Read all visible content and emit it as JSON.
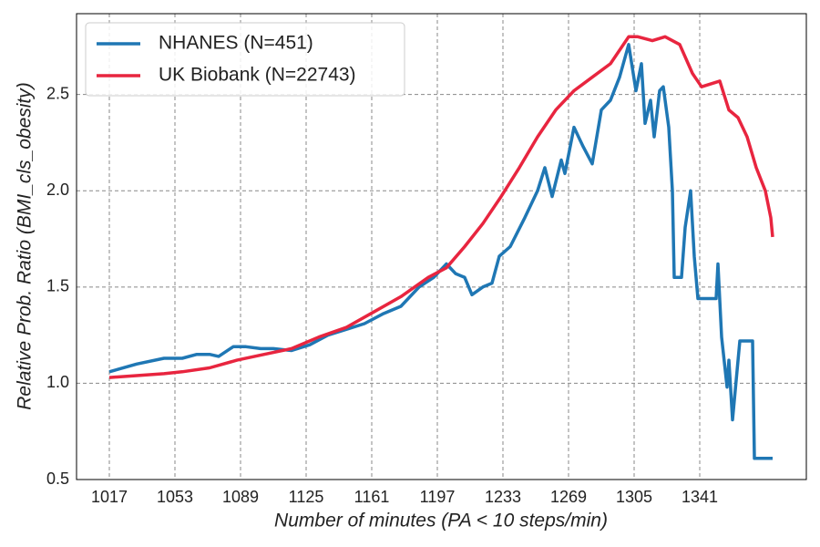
{
  "chart_data": {
    "type": "line",
    "x_label": "Number of minutes (PA < 10 steps/min)",
    "y_label": "Relative Prob. Ratio (BMI_cls_obesity)",
    "xlim": [
      999,
      1399.5
    ],
    "ylim": [
      0.5,
      2.92
    ],
    "xticks": [
      1017,
      1053,
      1089,
      1125,
      1161,
      1197,
      1233,
      1269,
      1305,
      1341
    ],
    "yticks": [
      0.5,
      1.0,
      1.5,
      2.0,
      2.5
    ],
    "ytick_labels": [
      "0.5",
      "1.0",
      "1.5",
      "2.0",
      "2.5"
    ],
    "grid": true,
    "legend": "upper left",
    "series": [
      {
        "name": "NHANES (N=451)",
        "color": "#1f77b4",
        "x": [
          1017,
          1032,
          1047,
          1057,
          1065,
          1072,
          1077,
          1085,
          1092,
          1100,
          1107,
          1117,
          1127,
          1137,
          1147,
          1157,
          1167,
          1177,
          1187,
          1195,
          1202,
          1207,
          1212,
          1216,
          1222,
          1227,
          1231,
          1237,
          1245,
          1252,
          1256,
          1260,
          1265,
          1267,
          1272,
          1277,
          1282,
          1287,
          1292,
          1297,
          1302,
          1306,
          1309,
          1311,
          1314,
          1316,
          1319,
          1321,
          1324,
          1326,
          1327,
          1331,
          1333,
          1336,
          1338,
          1340,
          1350,
          1351,
          1353,
          1356,
          1357,
          1359,
          1363,
          1370,
          1371,
          1381
        ],
        "values": [
          1.06,
          1.1,
          1.13,
          1.13,
          1.15,
          1.15,
          1.14,
          1.19,
          1.19,
          1.18,
          1.18,
          1.17,
          1.2,
          1.25,
          1.28,
          1.31,
          1.36,
          1.4,
          1.5,
          1.55,
          1.62,
          1.57,
          1.55,
          1.46,
          1.5,
          1.52,
          1.66,
          1.71,
          1.86,
          2.0,
          2.12,
          1.97,
          2.16,
          2.09,
          2.33,
          2.23,
          2.14,
          2.42,
          2.47,
          2.59,
          2.76,
          2.52,
          2.66,
          2.35,
          2.47,
          2.28,
          2.52,
          2.54,
          2.33,
          2.0,
          1.55,
          1.55,
          1.81,
          2.0,
          1.66,
          1.44,
          1.44,
          1.62,
          1.24,
          0.98,
          1.12,
          0.81,
          1.22,
          1.22,
          0.61,
          0.61
        ]
      },
      {
        "name": "UK Biobank (N=22743)",
        "color": "#e8253f",
        "x": [
          1017,
          1032,
          1047,
          1057,
          1072,
          1087,
          1102,
          1117,
          1132,
          1147,
          1162,
          1177,
          1192,
          1202,
          1212,
          1222,
          1232,
          1242,
          1252,
          1262,
          1272,
          1282,
          1292,
          1302,
          1307,
          1315,
          1322,
          1330,
          1337,
          1342,
          1352,
          1357,
          1362,
          1367,
          1372,
          1377,
          1380,
          1381
        ],
        "values": [
          1.03,
          1.04,
          1.05,
          1.06,
          1.08,
          1.12,
          1.15,
          1.18,
          1.24,
          1.29,
          1.37,
          1.45,
          1.55,
          1.6,
          1.71,
          1.83,
          1.97,
          2.12,
          2.28,
          2.42,
          2.52,
          2.59,
          2.66,
          2.8,
          2.8,
          2.78,
          2.8,
          2.76,
          2.61,
          2.54,
          2.57,
          2.42,
          2.38,
          2.28,
          2.12,
          2.0,
          1.86,
          1.76
        ]
      }
    ]
  }
}
